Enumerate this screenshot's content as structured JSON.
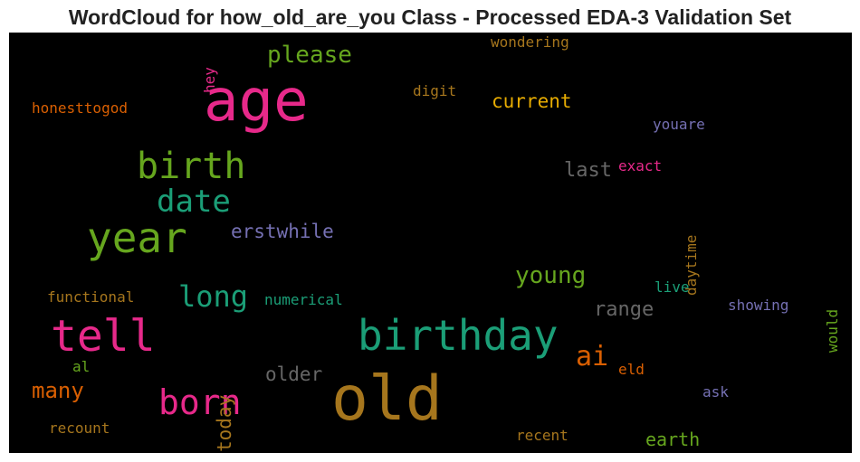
{
  "title": "WordCloud for how_old_are_you Class - Processed EDA-3 Validation Set",
  "words": [
    {
      "text": "age",
      "color": "#e7298a"
    },
    {
      "text": "old",
      "color": "#a6761d"
    },
    {
      "text": "birthday",
      "color": "#1b9e77"
    },
    {
      "text": "year",
      "color": "#66a61e"
    },
    {
      "text": "tell",
      "color": "#e7298a"
    },
    {
      "text": "birth",
      "color": "#66a61e"
    },
    {
      "text": "born",
      "color": "#e7298a"
    },
    {
      "text": "date",
      "color": "#1b9e77"
    },
    {
      "text": "long",
      "color": "#1b9e77"
    },
    {
      "text": "please",
      "color": "#66a61e"
    },
    {
      "text": "young",
      "color": "#66a61e"
    },
    {
      "text": "ai",
      "color": "#d95f02"
    },
    {
      "text": "many",
      "color": "#d95f02"
    },
    {
      "text": "current",
      "color": "#e6ab02"
    },
    {
      "text": "erstwhile",
      "color": "#7570b3"
    },
    {
      "text": "range",
      "color": "#666666"
    },
    {
      "text": "last",
      "color": "#666666"
    },
    {
      "text": "older",
      "color": "#666666"
    },
    {
      "text": "today",
      "color": "#a6761d"
    },
    {
      "text": "earth",
      "color": "#66a61e"
    },
    {
      "text": "wondering",
      "color": "#a6761d"
    },
    {
      "text": "honesttogod",
      "color": "#d95f02"
    },
    {
      "text": "digit",
      "color": "#a6761d"
    },
    {
      "text": "youare",
      "color": "#7570b3"
    },
    {
      "text": "exact",
      "color": "#e7298a"
    },
    {
      "text": "daytime",
      "color": "#a6761d"
    },
    {
      "text": "functional",
      "color": "#a6761d"
    },
    {
      "text": "numerical",
      "color": "#1b9e77"
    },
    {
      "text": "live",
      "color": "#1b9e77"
    },
    {
      "text": "showing",
      "color": "#7570b3"
    },
    {
      "text": "would",
      "color": "#66a61e"
    },
    {
      "text": "al",
      "color": "#66a61e"
    },
    {
      "text": "eld",
      "color": "#d95f02"
    },
    {
      "text": "ask",
      "color": "#7570b3"
    },
    {
      "text": "recount",
      "color": "#a6761d"
    },
    {
      "text": "recent",
      "color": "#a6761d"
    },
    {
      "text": "hey",
      "color": "#e7298a"
    }
  ]
}
